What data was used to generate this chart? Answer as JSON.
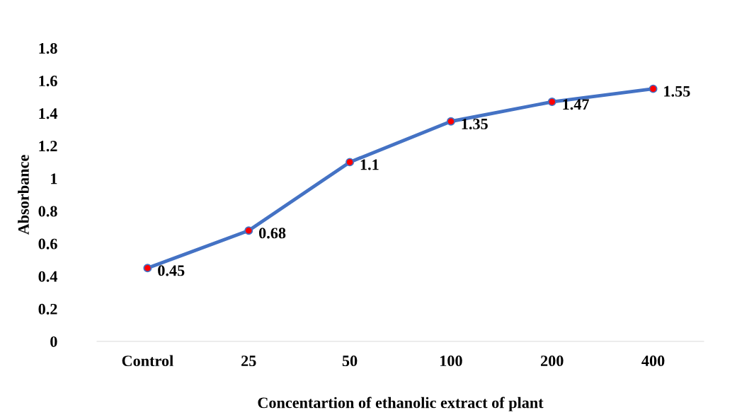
{
  "chart_data": {
    "type": "line",
    "xlabel": "Concentartion of ethanolic extract of plant",
    "ylabel": "Absorbance",
    "categories": [
      "Control",
      "25",
      "50",
      "100",
      "200",
      "400"
    ],
    "series": [
      {
        "color": "#4472c4",
        "colors": [
          "#ff0000",
          "#ff0000",
          "#ff0000",
          "#ff0000",
          "#ff0000",
          "#ff0000"
        ],
        "values": [
          0.45,
          0.68,
          1.1,
          1.35,
          1.47,
          1.55
        ]
      }
    ],
    "ylim": [
      0,
      1.8
    ],
    "yticks": [
      0,
      0.2,
      0.4,
      0.6,
      0.8,
      1,
      1.2,
      1.4,
      1.6,
      1.8
    ],
    "data_labels": true,
    "marker": "circle",
    "line_style": "solid",
    "grid": false,
    "legend": false
  }
}
